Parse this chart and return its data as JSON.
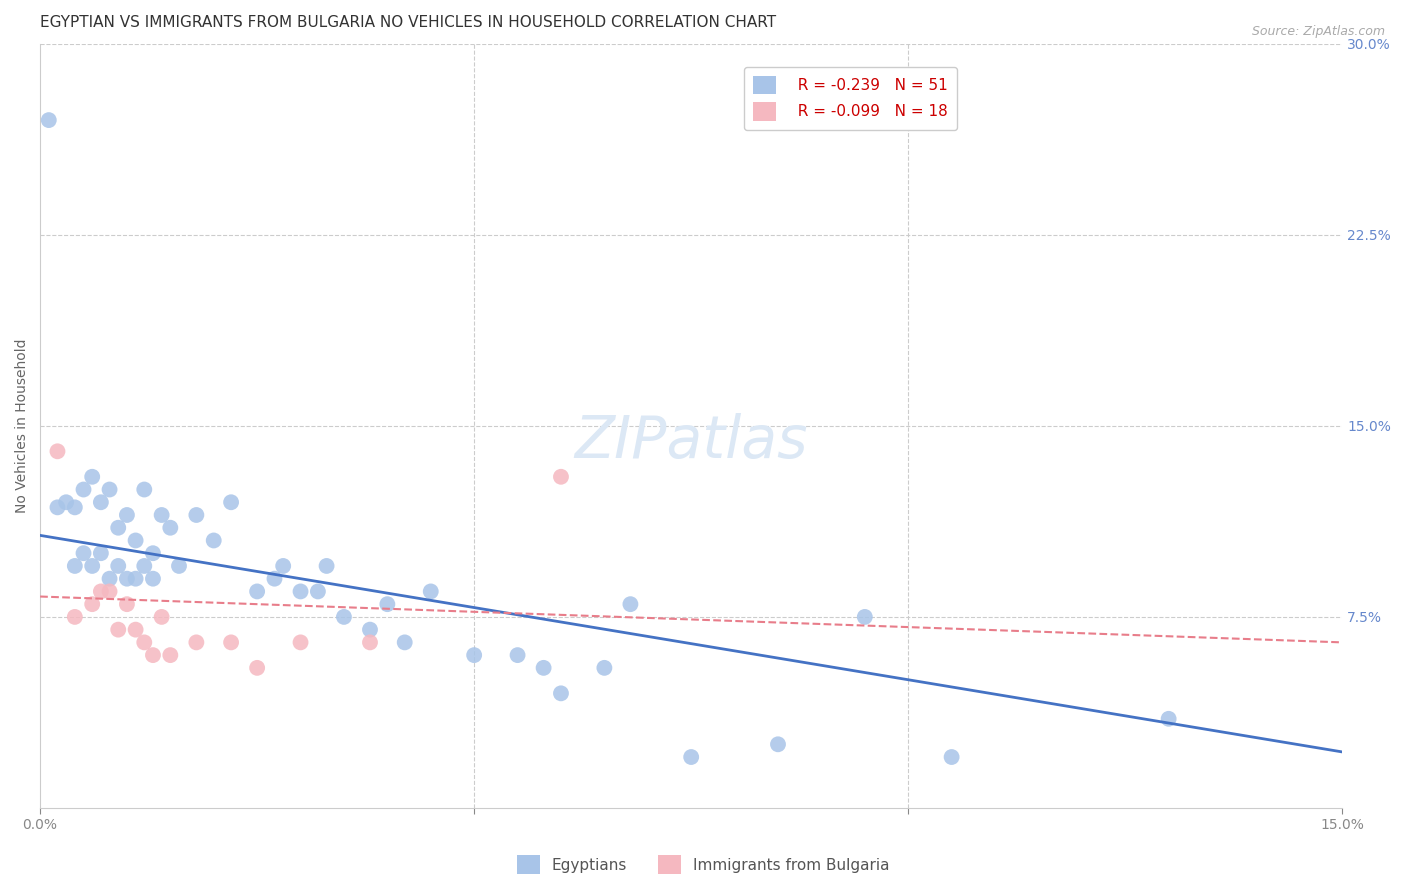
{
  "title": "EGYPTIAN VS IMMIGRANTS FROM BULGARIA NO VEHICLES IN HOUSEHOLD CORRELATION CHART",
  "source": "Source: ZipAtlas.com",
  "xlabel": "",
  "ylabel": "No Vehicles in Household",
  "x_min": 0.0,
  "x_max": 0.15,
  "y_min": 0.0,
  "y_max": 0.3,
  "watermark": "ZIPatlas",
  "legend_r1": "R = -0.239",
  "legend_n1": "N = 51",
  "legend_r2": "R = -0.099",
  "legend_n2": "N = 18",
  "color_blue": "#a8c4e8",
  "color_pink": "#f5b8c0",
  "trendline_blue": "#4472c4",
  "trendline_pink": "#e87d8a",
  "egyptian_x": [
    0.001,
    0.002,
    0.003,
    0.004,
    0.004,
    0.005,
    0.005,
    0.006,
    0.006,
    0.007,
    0.007,
    0.008,
    0.008,
    0.009,
    0.009,
    0.01,
    0.01,
    0.011,
    0.011,
    0.012,
    0.012,
    0.013,
    0.013,
    0.014,
    0.015,
    0.016,
    0.018,
    0.02,
    0.022,
    0.025,
    0.027,
    0.028,
    0.03,
    0.032,
    0.033,
    0.035,
    0.038,
    0.04,
    0.042,
    0.045,
    0.05,
    0.055,
    0.058,
    0.06,
    0.065,
    0.068,
    0.075,
    0.085,
    0.095,
    0.105,
    0.13
  ],
  "egyptian_y": [
    0.27,
    0.118,
    0.12,
    0.118,
    0.095,
    0.125,
    0.1,
    0.13,
    0.095,
    0.12,
    0.1,
    0.125,
    0.09,
    0.11,
    0.095,
    0.115,
    0.09,
    0.105,
    0.09,
    0.125,
    0.095,
    0.1,
    0.09,
    0.115,
    0.11,
    0.095,
    0.115,
    0.105,
    0.12,
    0.085,
    0.09,
    0.095,
    0.085,
    0.085,
    0.095,
    0.075,
    0.07,
    0.08,
    0.065,
    0.085,
    0.06,
    0.06,
    0.055,
    0.045,
    0.055,
    0.08,
    0.02,
    0.025,
    0.075,
    0.02,
    0.035
  ],
  "bulgaria_x": [
    0.002,
    0.004,
    0.006,
    0.007,
    0.008,
    0.009,
    0.01,
    0.011,
    0.012,
    0.013,
    0.014,
    0.015,
    0.018,
    0.022,
    0.025,
    0.03,
    0.038,
    0.06
  ],
  "bulgaria_y": [
    0.14,
    0.075,
    0.08,
    0.085,
    0.085,
    0.07,
    0.08,
    0.07,
    0.065,
    0.06,
    0.075,
    0.06,
    0.065,
    0.065,
    0.055,
    0.065,
    0.065,
    0.13
  ],
  "background_color": "#ffffff",
  "grid_color": "#cccccc",
  "title_fontsize": 11,
  "axis_label_fontsize": 10,
  "tick_fontsize": 10,
  "legend_fontsize": 11,
  "watermark_fontsize": 42,
  "watermark_color": "#dce8f5",
  "source_fontsize": 9,
  "blue_trendline_start_y": 0.107,
  "blue_trendline_end_y": 0.022,
  "pink_trendline_start_y": 0.083,
  "pink_trendline_end_y": 0.065
}
